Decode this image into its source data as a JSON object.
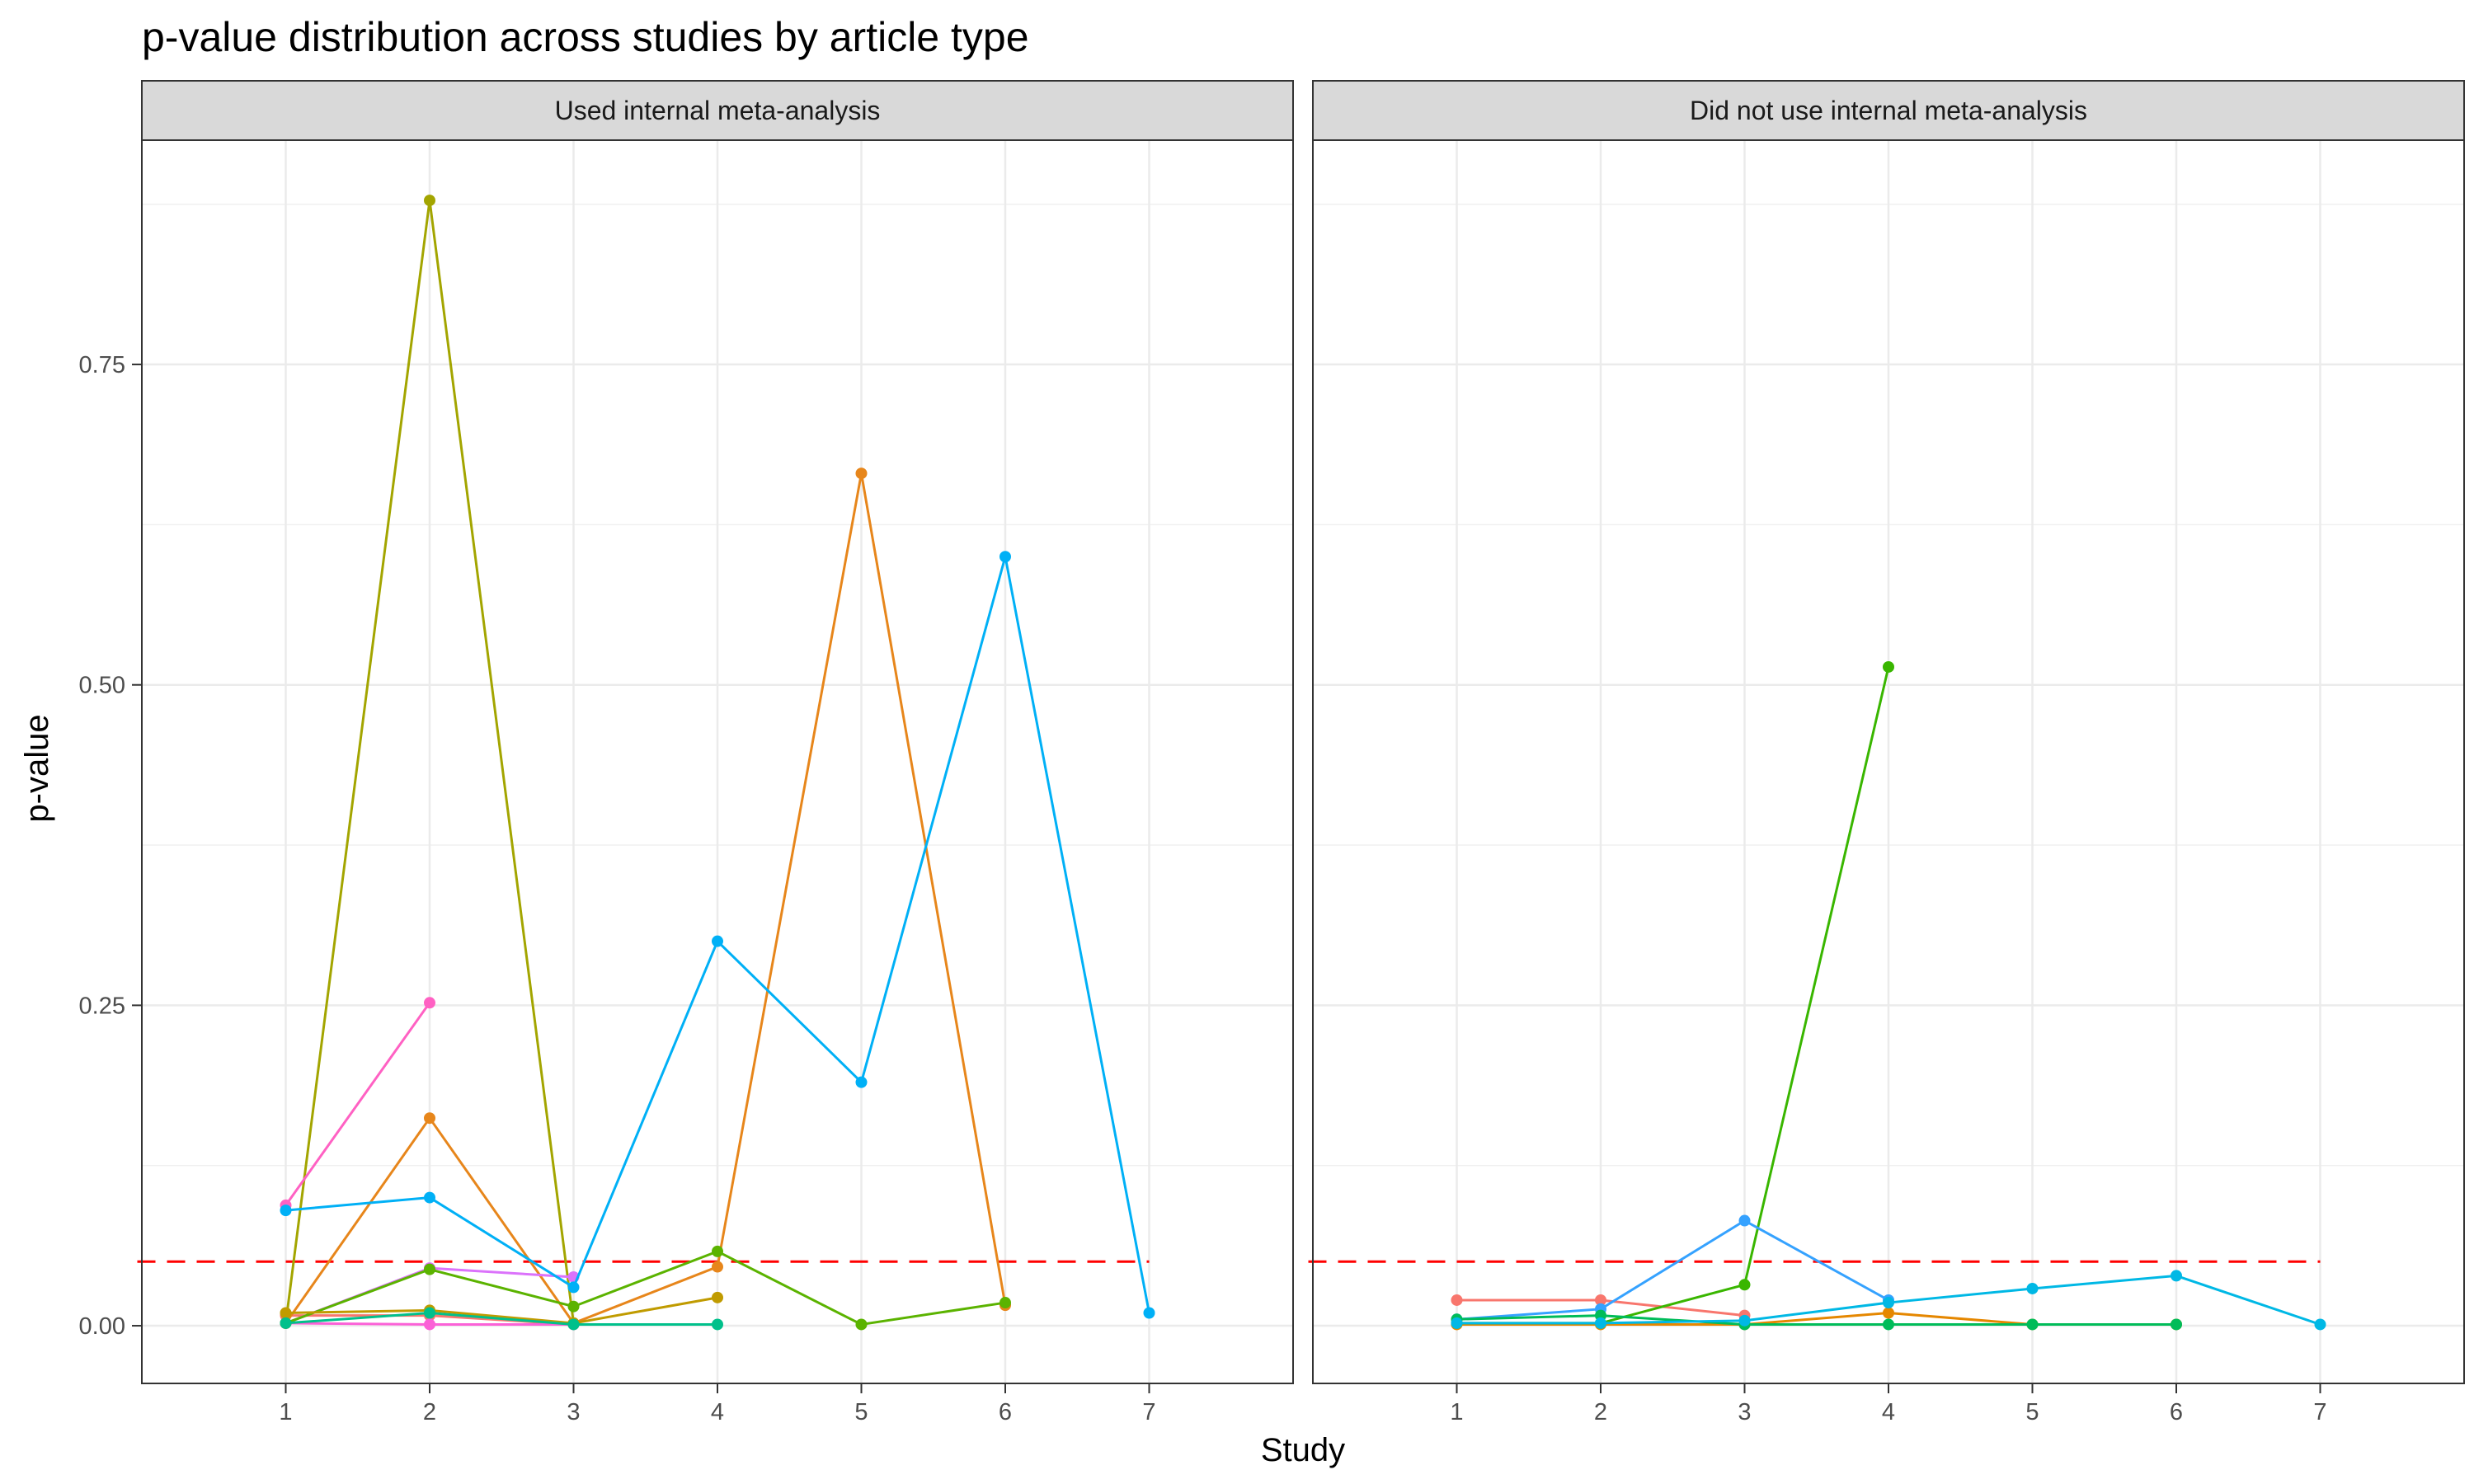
{
  "chart_data": {
    "type": "line",
    "title": "p-value distribution across studies by article type",
    "xlabel": "Study",
    "ylabel": "p-value",
    "xlim": [
      0,
      8
    ],
    "ylim": [
      -0.045,
      0.925
    ],
    "x_ticks": [
      1,
      2,
      3,
      4,
      5,
      6,
      7
    ],
    "y_ticks": [
      0.0,
      0.25,
      0.5,
      0.75
    ],
    "y_tick_labels": [
      "0.00",
      "0.25",
      "0.50",
      "0.75"
    ],
    "grid": true,
    "legend": "none",
    "reference_line": {
      "y": 0.05,
      "color": "#ff0000",
      "style": "dashed"
    },
    "panels": [
      {
        "label": "Used internal meta-analysis",
        "series": [
          {
            "color": "#a3a500",
            "points": [
              [
                1,
                0.002
              ],
              [
                2,
                0.878
              ],
              [
                3,
                0.002
              ]
            ]
          },
          {
            "color": "#f8766d",
            "points": [
              [
                1,
                0.008
              ],
              [
                2,
                0.008
              ],
              [
                3,
                0.001
              ]
            ]
          },
          {
            "color": "#e7861b",
            "points": [
              [
                1,
                0.002
              ],
              [
                2,
                0.162
              ],
              [
                3,
                0.002
              ],
              [
                4,
                0.046
              ],
              [
                5,
                0.665
              ],
              [
                6,
                0.016
              ]
            ]
          },
          {
            "color": "#ff61c3",
            "points": [
              [
                1,
                0.094
              ],
              [
                2,
                0.252
              ]
            ]
          },
          {
            "color": "#db72fb",
            "points": [
              [
                1,
                0.002
              ],
              [
                2,
                0.045
              ],
              [
                3,
                0.038
              ]
            ]
          },
          {
            "color": "#fb61d7",
            "points": [
              [
                1,
                0.002
              ],
              [
                2,
                0.001
              ],
              [
                3,
                0.001
              ]
            ]
          },
          {
            "color": "#00b0f6",
            "points": [
              [
                1,
                0.09
              ],
              [
                2,
                0.1
              ],
              [
                3,
                0.03
              ],
              [
                4,
                0.3
              ],
              [
                5,
                0.19
              ],
              [
                6,
                0.6
              ],
              [
                7,
                0.01
              ]
            ]
          },
          {
            "color": "#5bb300",
            "points": [
              [
                1,
                0.002
              ],
              [
                2,
                0.044
              ],
              [
                3,
                0.015
              ],
              [
                4,
                0.058
              ],
              [
                5,
                0.001
              ],
              [
                6,
                0.018
              ]
            ]
          },
          {
            "color": "#c09b00",
            "points": [
              [
                1,
                0.01
              ],
              [
                2,
                0.012
              ],
              [
                3,
                0.002
              ],
              [
                4,
                0.022
              ]
            ]
          },
          {
            "color": "#00c08b",
            "points": [
              [
                1,
                0.002
              ],
              [
                2,
                0.01
              ],
              [
                3,
                0.001
              ],
              [
                4,
                0.001
              ]
            ]
          }
        ]
      },
      {
        "label": "Did not use internal meta-analysis",
        "series": [
          {
            "color": "#f8766d",
            "points": [
              [
                1,
                0.02
              ],
              [
                2,
                0.02
              ],
              [
                3,
                0.008
              ]
            ]
          },
          {
            "color": "#e58700",
            "points": [
              [
                1,
                0.001
              ],
              [
                2,
                0.001
              ],
              [
                3,
                0.001
              ],
              [
                4,
                0.01
              ],
              [
                5,
                0.001
              ],
              [
                6,
                0.001
              ]
            ]
          },
          {
            "color": "#39b600",
            "points": [
              [
                1,
                0.002
              ],
              [
                2,
                0.002
              ],
              [
                3,
                0.032
              ],
              [
                4,
                0.514
              ]
            ]
          },
          {
            "color": "#35a2ff",
            "points": [
              [
                1,
                0.005
              ],
              [
                2,
                0.013
              ],
              [
                3,
                0.082
              ],
              [
                4,
                0.02
              ]
            ]
          },
          {
            "color": "#00bc59",
            "points": [
              [
                1,
                0.005
              ],
              [
                2,
                0.008
              ],
              [
                3,
                0.001
              ],
              [
                4,
                0.001
              ],
              [
                5,
                0.001
              ],
              [
                6,
                0.001
              ]
            ]
          },
          {
            "color": "#00b8e5",
            "points": [
              [
                1,
                0.002
              ],
              [
                2,
                0.002
              ],
              [
                3,
                0.004
              ],
              [
                4,
                0.018
              ],
              [
                5,
                0.029
              ],
              [
                6,
                0.039
              ],
              [
                7,
                0.001
              ]
            ]
          }
        ]
      }
    ]
  }
}
